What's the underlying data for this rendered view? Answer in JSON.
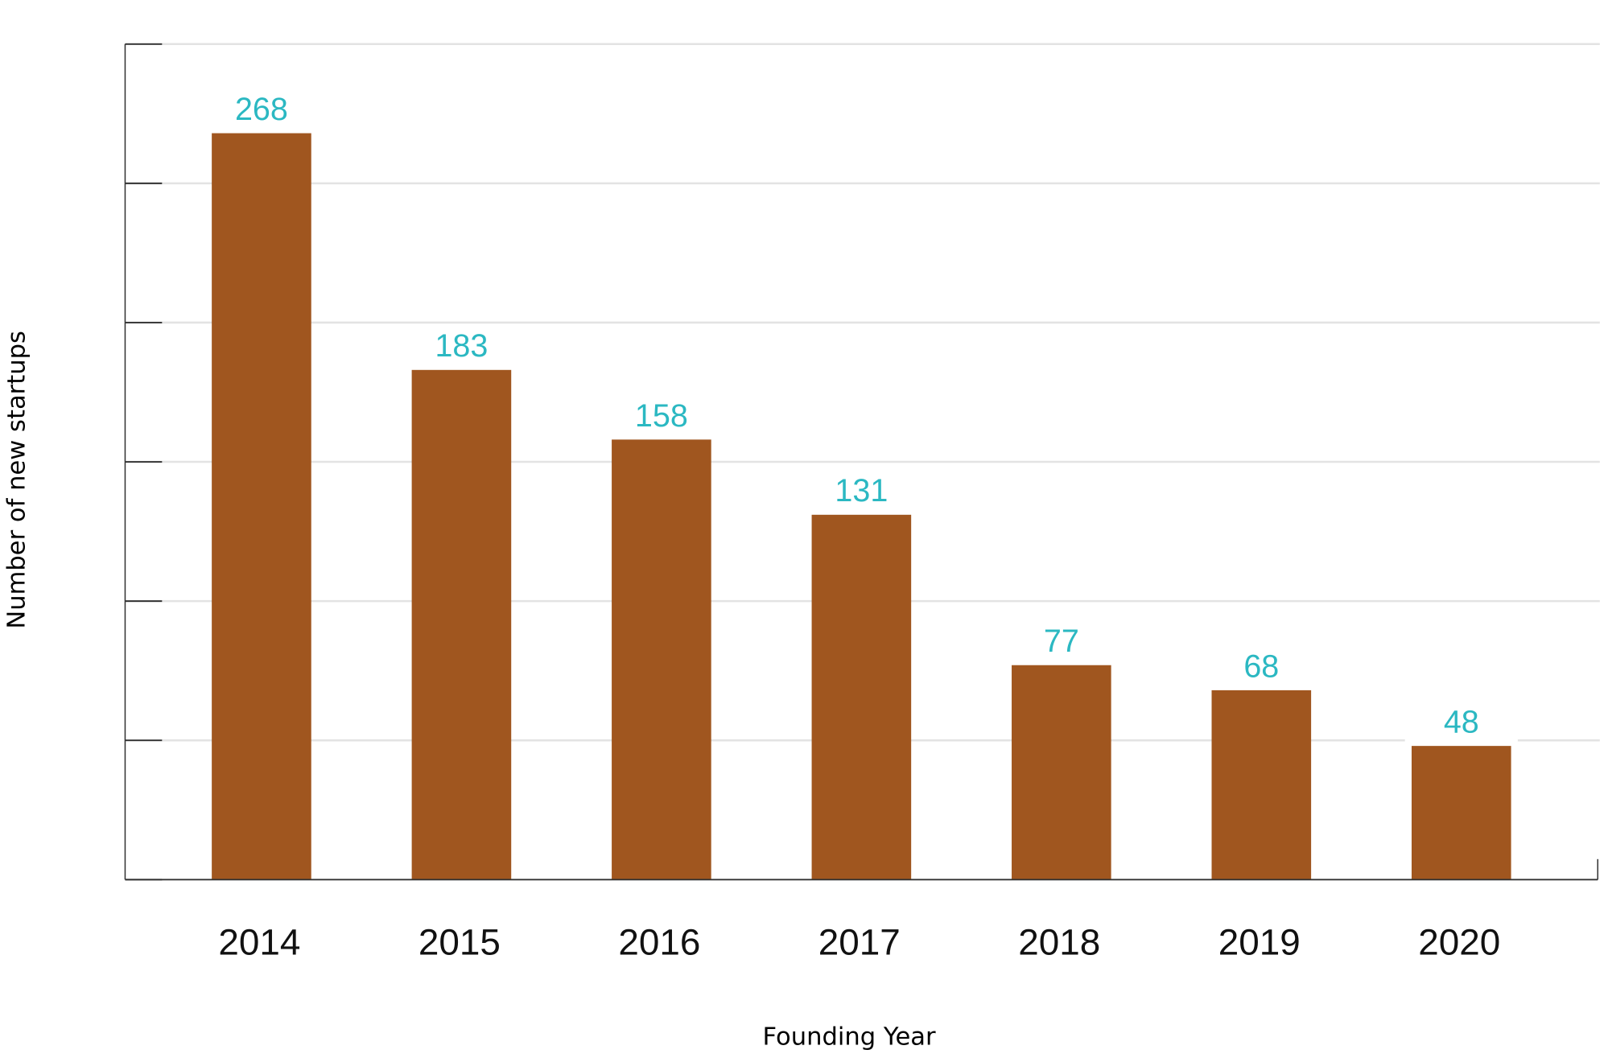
{
  "chart_data": {
    "type": "bar",
    "title": "",
    "xlabel": "Founding Year",
    "ylabel": "Number of new startups",
    "categories": [
      "2014",
      "2015",
      "2016",
      "2017",
      "2018",
      "2019",
      "2020"
    ],
    "values": [
      268,
      183,
      158,
      131,
      77,
      68,
      48
    ],
    "data_labels": [
      "268",
      "183",
      "158",
      "131",
      "77",
      "68",
      "48"
    ],
    "ylim": [
      0,
      300
    ],
    "ytick_step": 50,
    "grid": true,
    "bar_color": "#a0561f",
    "label_color": "#2bb8c2",
    "grid_color": "#e3e3e3"
  }
}
